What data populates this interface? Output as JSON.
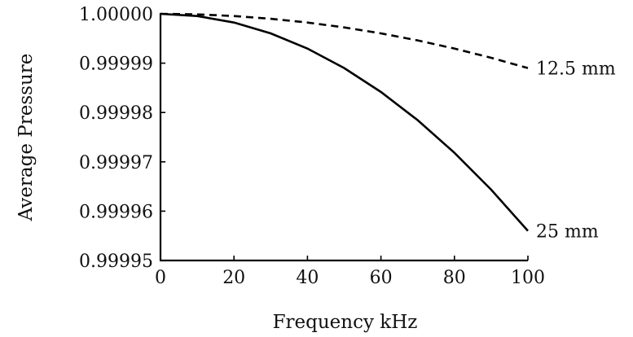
{
  "chart_data": {
    "type": "line",
    "xlabel": "Frequency kHz",
    "ylabel": "Average Pressure",
    "xlim": [
      0,
      100
    ],
    "ylim": [
      0.99995,
      1.0
    ],
    "xticks": [
      {
        "value": 0,
        "label": "0"
      },
      {
        "value": 20,
        "label": "20"
      },
      {
        "value": 40,
        "label": "40"
      },
      {
        "value": 60,
        "label": "60"
      },
      {
        "value": 80,
        "label": "80"
      },
      {
        "value": 100,
        "label": "100"
      }
    ],
    "yticks": [
      {
        "value": 0.99995,
        "label": "0.99995"
      },
      {
        "value": 0.99996,
        "label": "0.99996"
      },
      {
        "value": 0.99997,
        "label": "0.99997"
      },
      {
        "value": 0.99998,
        "label": "0.99998"
      },
      {
        "value": 0.99999,
        "label": "0.99999"
      },
      {
        "value": 1.0,
        "label": "1.00000"
      }
    ],
    "grid": false,
    "series": [
      {
        "name": "12.5 mm",
        "style": "dashed",
        "color": "#000000",
        "x": [
          0,
          10,
          20,
          30,
          40,
          50,
          60,
          70,
          80,
          90,
          100
        ],
        "y": [
          1.0,
          0.99999989,
          0.99999956,
          0.999999,
          0.99999824,
          0.99999725,
          0.99999604,
          0.99999461,
          0.99999296,
          0.99999109,
          0.999989
        ]
      },
      {
        "name": "25 mm",
        "style": "solid",
        "color": "#000000",
        "x": [
          0,
          10,
          20,
          30,
          40,
          50,
          60,
          70,
          80,
          90,
          100
        ],
        "y": [
          1.0,
          0.99999956,
          0.99999824,
          0.99999604,
          0.99999296,
          0.999989,
          0.99998416,
          0.99997844,
          0.99997184,
          0.99996436,
          0.999956
        ]
      }
    ]
  }
}
